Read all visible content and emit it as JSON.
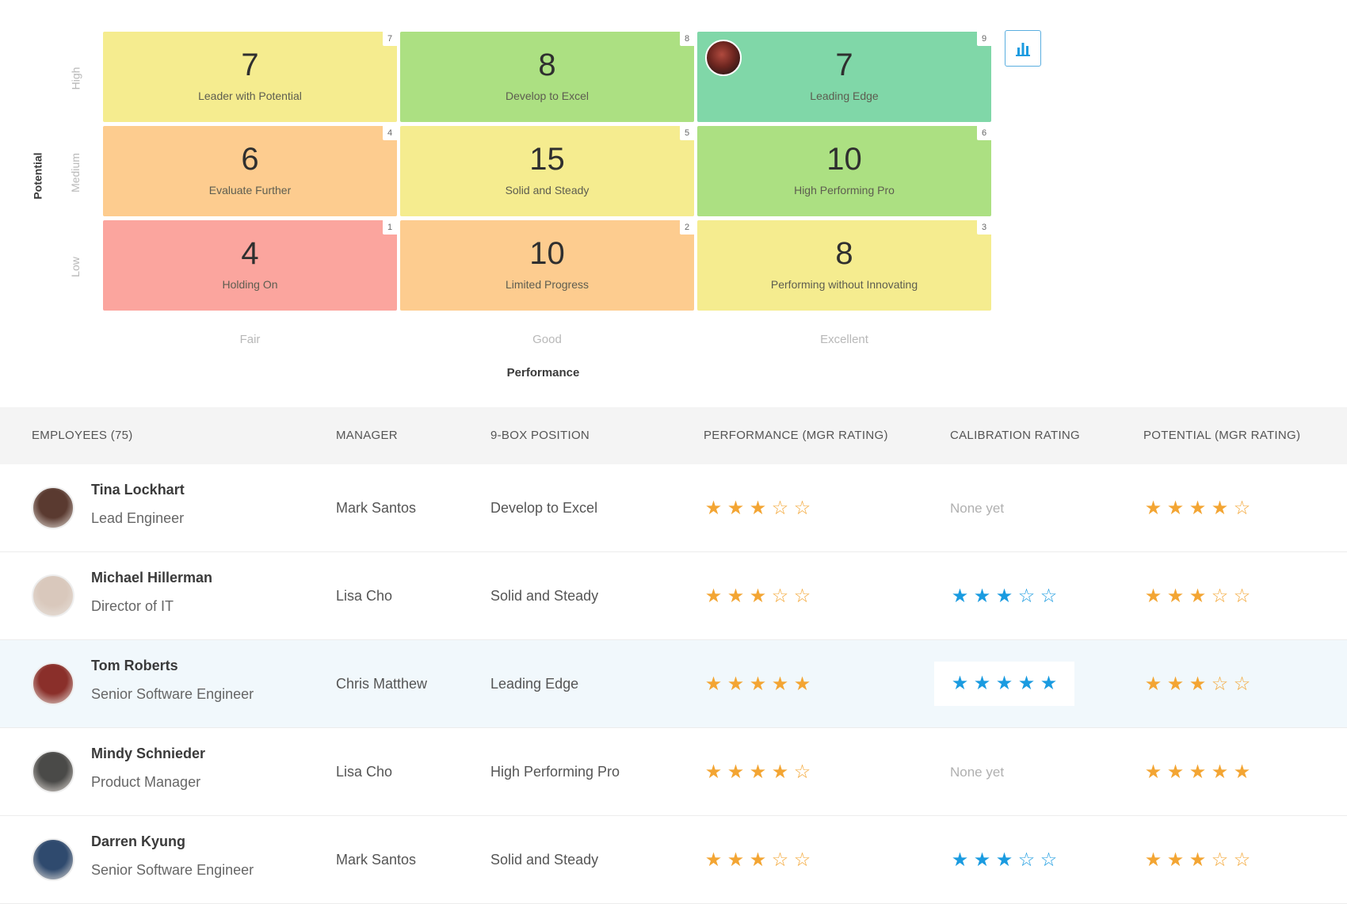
{
  "ninebox": {
    "y_axis_title": "Potential",
    "x_axis_title": "Performance",
    "rows": [
      "High",
      "Medium",
      "Low"
    ],
    "columns": [
      "Fair",
      "Good",
      "Excellent"
    ],
    "cells": [
      {
        "count": "7",
        "label": "Leader with Potential",
        "position": "7",
        "color": "#f5ec8f"
      },
      {
        "count": "8",
        "label": "Develop to Excel",
        "position": "8",
        "color": "#ace082"
      },
      {
        "count": "7",
        "label": "Leading Edge",
        "position": "9",
        "color": "#80d7a8"
      },
      {
        "count": "6",
        "label": "Evaluate Further",
        "position": "4",
        "color": "#fdcc8f"
      },
      {
        "count": "15",
        "label": "Solid and Steady",
        "position": "5",
        "color": "#f5ec8f"
      },
      {
        "count": "10",
        "label": "High Performing Pro",
        "position": "6",
        "color": "#ace082"
      },
      {
        "count": "4",
        "label": "Holding On",
        "position": "1",
        "color": "#fba59e"
      },
      {
        "count": "10",
        "label": "Limited Progress",
        "position": "2",
        "color": "#fdcc8f"
      },
      {
        "count": "8",
        "label": "Performing without Innovating",
        "position": "3",
        "color": "#f5ec8f"
      }
    ],
    "chart_icon": "bar-chart-icon"
  },
  "table": {
    "headers": {
      "employees": "EMPLOYEES (75)",
      "manager": "MANAGER",
      "position": "9-BOX POSITION",
      "performance": "PERFORMANCE (MGR RATING)",
      "calibration": "CALIBRATION RATING",
      "potential": "POTENTIAL (MGR RATING)"
    },
    "rows": [
      {
        "name": "Tina Lockhart",
        "title": "Lead Engineer",
        "manager": "Mark Santos",
        "position": "Develop to Excel",
        "performance": 3,
        "calibration": null,
        "calibration_text": "None yet",
        "potential": 4,
        "avatar_color": "#5a3a30"
      },
      {
        "name": "Michael Hillerman",
        "title": "Director of IT",
        "manager": "Lisa Cho",
        "position": "Solid and Steady",
        "performance": 3,
        "calibration": 3,
        "calibration_text": "",
        "potential": 3,
        "avatar_color": "#d9c8bc"
      },
      {
        "name": "Tom Roberts",
        "title": "Senior Software Engineer",
        "manager": "Chris Matthew",
        "position": "Leading Edge",
        "performance": 5,
        "calibration": 5,
        "calibration_text": "",
        "potential": 3,
        "avatar_color": "#8a2f2a"
      },
      {
        "name": "Mindy Schnieder",
        "title": "Product Manager",
        "manager": "Lisa Cho",
        "position": "High Performing Pro",
        "performance": 4,
        "calibration": null,
        "calibration_text": "None yet",
        "potential": 5,
        "avatar_color": "#4a4a48"
      },
      {
        "name": "Darren Kyung",
        "title": "Senior Software Engineer",
        "manager": "Mark Santos",
        "position": "Solid and Steady",
        "performance": 3,
        "calibration": 3,
        "calibration_text": "",
        "potential": 3,
        "avatar_color": "#2f4a6e"
      }
    ]
  },
  "colors": {
    "star_orange": "#f3a533",
    "star_blue": "#1a9be0",
    "highlight_row": "#f1f8fc"
  }
}
